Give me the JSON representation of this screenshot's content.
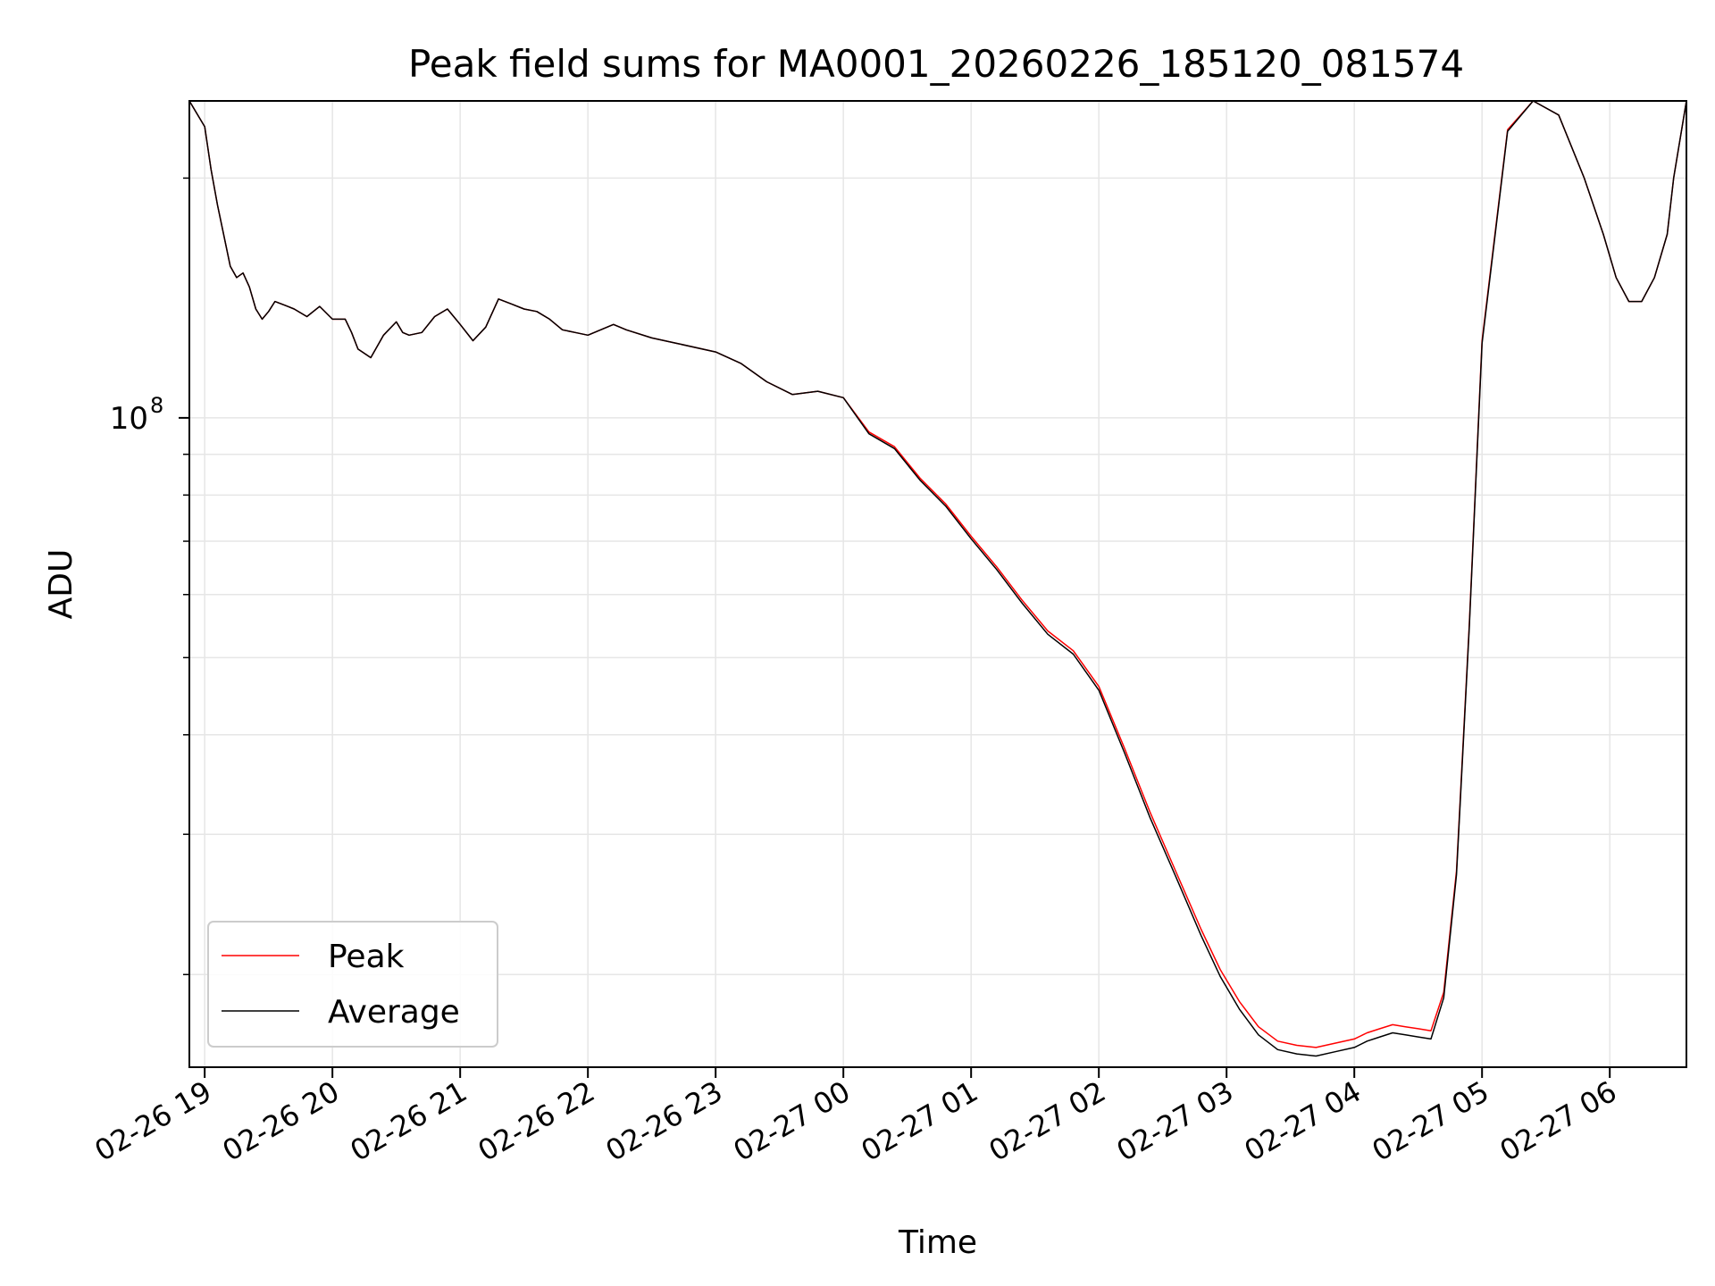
{
  "chart_data": {
    "type": "line",
    "title": "Peak field sums for MA0001_20260226_185120_081574",
    "xlabel": "Time",
    "ylabel": "ADU",
    "yscale": "log",
    "grid": true,
    "legend_position": "lower-left",
    "x_unit": "hours since 02-26 19:00",
    "xlim": [
      -0.12,
      11.6
    ],
    "ylim": [
      15300000,
      250000000
    ],
    "y_major_tick": {
      "value": 100000000,
      "base": "10",
      "exponent": "8"
    },
    "y_minor_ticks": [
      20000000,
      30000000,
      40000000,
      50000000,
      60000000,
      70000000,
      80000000,
      90000000,
      200000000
    ],
    "x_ticks": [
      {
        "x": 0,
        "label": "02-26 19"
      },
      {
        "x": 1,
        "label": "02-26 20"
      },
      {
        "x": 2,
        "label": "02-26 21"
      },
      {
        "x": 3,
        "label": "02-26 22"
      },
      {
        "x": 4,
        "label": "02-26 23"
      },
      {
        "x": 5,
        "label": "02-27 00"
      },
      {
        "x": 6,
        "label": "02-27 01"
      },
      {
        "x": 7,
        "label": "02-27 02"
      },
      {
        "x": 8,
        "label": "02-27 03"
      },
      {
        "x": 9,
        "label": "02-27 04"
      },
      {
        "x": 10,
        "label": "02-27 05"
      },
      {
        "x": 11,
        "label": "02-27 06"
      }
    ],
    "series": [
      {
        "name": "Peak",
        "color": "#ff0000",
        "x": [
          -0.12,
          0.0,
          0.05,
          0.1,
          0.2,
          0.25,
          0.3,
          0.35,
          0.4,
          0.45,
          0.5,
          0.55,
          0.6,
          0.65,
          0.7,
          0.8,
          0.9,
          1.0,
          1.1,
          1.15,
          1.2,
          1.3,
          1.4,
          1.5,
          1.55,
          1.6,
          1.7,
          1.8,
          1.9,
          2.0,
          2.1,
          2.2,
          2.3,
          2.4,
          2.5,
          2.6,
          2.7,
          2.8,
          2.9,
          3.0,
          3.1,
          3.2,
          3.3,
          3.5,
          3.7,
          4.0,
          4.2,
          4.4,
          4.6,
          4.8,
          5.0,
          5.2,
          5.4,
          5.6,
          5.8,
          6.0,
          6.2,
          6.4,
          6.6,
          6.8,
          7.0,
          7.2,
          7.4,
          7.6,
          7.8,
          7.95,
          8.1,
          8.25,
          8.4,
          8.55,
          8.7,
          8.85,
          9.0,
          9.1,
          9.2,
          9.3,
          9.4,
          9.5,
          9.6,
          9.7,
          9.8,
          9.9,
          10.0,
          10.2,
          10.4,
          10.6,
          10.8,
          10.95,
          11.05,
          11.15,
          11.25,
          11.35,
          11.45,
          11.5,
          11.6
        ],
        "values": [
          250000000,
          232000000,
          205000000,
          185000000,
          155000000,
          150000000,
          152000000,
          146000000,
          137000000,
          133000000,
          136000000,
          140000000,
          139000000,
          138000000,
          137000000,
          134000000,
          138000000,
          133000000,
          133000000,
          128000000,
          122000000,
          119000000,
          127000000,
          132000000,
          128000000,
          127000000,
          128000000,
          134000000,
          137000000,
          131000000,
          125000000,
          130000000,
          141000000,
          139000000,
          137000000,
          136000000,
          133000000,
          129000000,
          128000000,
          127000000,
          129000000,
          131000000,
          129000000,
          126000000,
          124000000,
          121000000,
          117000000,
          111000000,
          107000000,
          108000000,
          106000000,
          96000000,
          92000000,
          84000000,
          78000000,
          71000000,
          65000000,
          59000000,
          54000000,
          51000000,
          46000000,
          38500000,
          32000000,
          27000000,
          22800000,
          20300000,
          18500000,
          17200000,
          16500000,
          16300000,
          16200000,
          16400000,
          16600000,
          16900000,
          17100000,
          17300000,
          17200000,
          17100000,
          17000000,
          19000000,
          27000000,
          55000000,
          125000000,
          230000000,
          250000000,
          240000000,
          200000000,
          170000000,
          150000000,
          140000000,
          140000000,
          150000000,
          170000000,
          200000000,
          250000000
        ]
      },
      {
        "name": "Average",
        "color": "#000000",
        "x": [
          -0.12,
          0.0,
          0.05,
          0.1,
          0.2,
          0.25,
          0.3,
          0.35,
          0.4,
          0.45,
          0.5,
          0.55,
          0.6,
          0.65,
          0.7,
          0.8,
          0.9,
          1.0,
          1.1,
          1.15,
          1.2,
          1.3,
          1.4,
          1.5,
          1.55,
          1.6,
          1.7,
          1.8,
          1.9,
          2.0,
          2.1,
          2.2,
          2.3,
          2.4,
          2.5,
          2.6,
          2.7,
          2.8,
          2.9,
          3.0,
          3.1,
          3.2,
          3.3,
          3.5,
          3.7,
          4.0,
          4.2,
          4.4,
          4.6,
          4.8,
          5.0,
          5.2,
          5.4,
          5.6,
          5.8,
          6.0,
          6.2,
          6.4,
          6.6,
          6.8,
          7.0,
          7.2,
          7.4,
          7.6,
          7.8,
          7.95,
          8.1,
          8.25,
          8.4,
          8.55,
          8.7,
          8.85,
          9.0,
          9.1,
          9.2,
          9.3,
          9.4,
          9.5,
          9.6,
          9.7,
          9.8,
          9.9,
          10.0,
          10.2,
          10.4,
          10.6,
          10.8,
          10.95,
          11.05,
          11.15,
          11.25,
          11.35,
          11.45,
          11.5,
          11.6
        ],
        "values": [
          250000000,
          232000000,
          205000000,
          185000000,
          155000000,
          150000000,
          152000000,
          146000000,
          137000000,
          133000000,
          136000000,
          140000000,
          139000000,
          138000000,
          137000000,
          134000000,
          138000000,
          133000000,
          133000000,
          128000000,
          122000000,
          119000000,
          127000000,
          132000000,
          128000000,
          127000000,
          128000000,
          134000000,
          137000000,
          131000000,
          125000000,
          130000000,
          141000000,
          139000000,
          137000000,
          136000000,
          133000000,
          129000000,
          128000000,
          127000000,
          129000000,
          131000000,
          129000000,
          126000000,
          124000000,
          121000000,
          117000000,
          111000000,
          107000000,
          108000000,
          106000000,
          95500000,
          91500000,
          83500000,
          77500000,
          70500000,
          64500000,
          58500000,
          53500000,
          50500000,
          45500000,
          38000000,
          31500000,
          26600000,
          22400000,
          19900000,
          18100000,
          16800000,
          16100000,
          15900000,
          15800000,
          16000000,
          16200000,
          16500000,
          16700000,
          16900000,
          16800000,
          16700000,
          16600000,
          18700000,
          26700000,
          54500000,
          124000000,
          229000000,
          250000000,
          240000000,
          200000000,
          170000000,
          150000000,
          140000000,
          140000000,
          150000000,
          170000000,
          200000000,
          250000000
        ]
      }
    ]
  }
}
